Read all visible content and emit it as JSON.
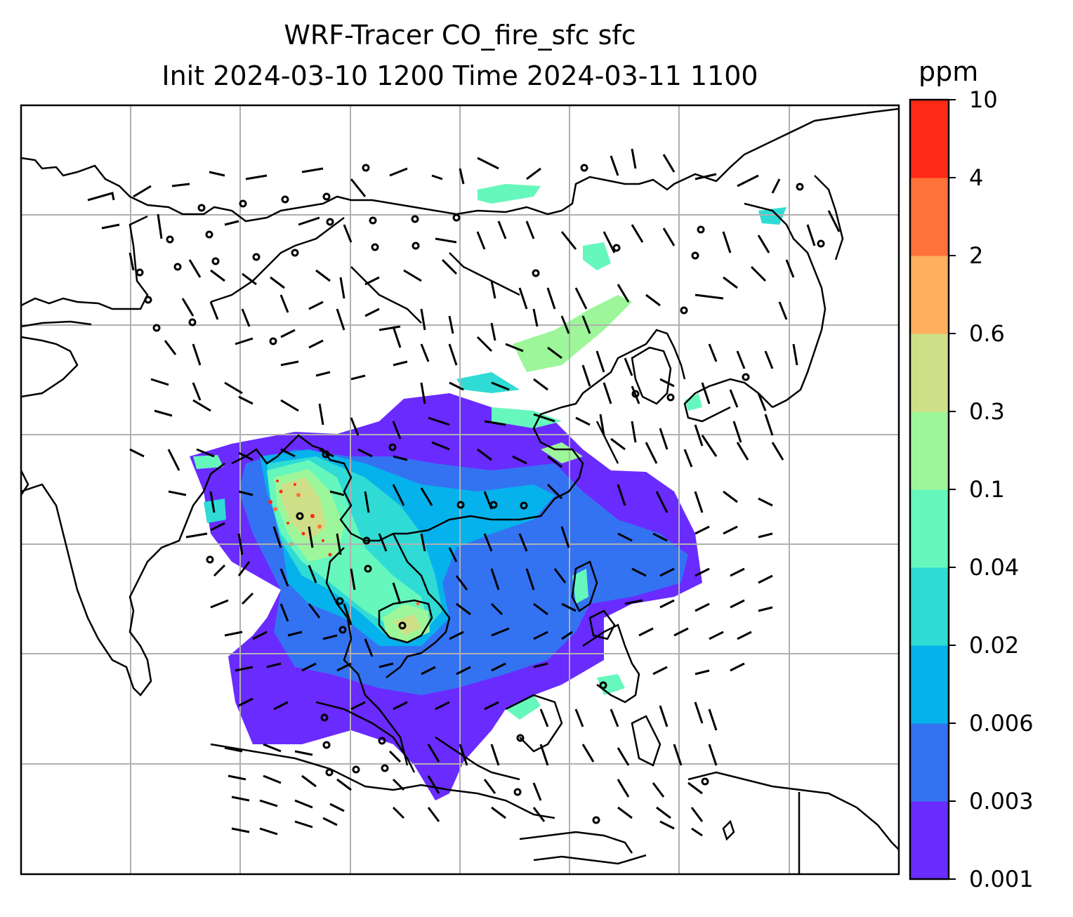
{
  "title_line1": "WRF-Tracer CO_fire_sfc sfc",
  "title_line2": "Init 2024-03-10 1200 Time 2024-03-11 1100",
  "colorbar": {
    "unit": "ppm",
    "levels": [
      "0.001",
      "0.003",
      "0.006",
      "0.02",
      "0.04",
      "0.1",
      "0.3",
      "0.6",
      "2",
      "4",
      "10"
    ],
    "colors": [
      "#6a2bff",
      "#3373f2",
      "#06b2eb",
      "#2fdbd4",
      "#66f7bd",
      "#9df79a",
      "#cfdf87",
      "#ffaf5e",
      "#ff7239",
      "#ff2a16"
    ]
  },
  "map": {
    "gridlines": true,
    "gridline_color": "#b0b0b0",
    "coastline_color": "#000000",
    "fields": [
      "fire CO concentration",
      "wind barbs"
    ]
  }
}
